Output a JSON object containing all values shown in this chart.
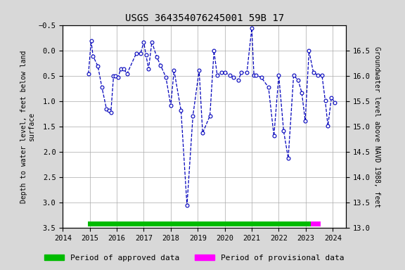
{
  "title": "USGS 364354076245001 59B 17",
  "ylabel_left": "Depth to water level, feet below land\nsurface",
  "ylabel_right": "Groundwater level above NAVD 1988, feet",
  "ylim_left_bottom": 3.5,
  "ylim_left_top": -0.5,
  "ylim_right_bottom": 13.0,
  "ylim_right_top": 16.5,
  "xlim": [
    2014.0,
    2024.5
  ],
  "xticks": [
    2014,
    2015,
    2016,
    2017,
    2018,
    2019,
    2020,
    2021,
    2022,
    2023,
    2024
  ],
  "yticks_left": [
    -0.5,
    0.0,
    0.5,
    1.0,
    1.5,
    2.0,
    2.5,
    3.0,
    3.5
  ],
  "yticks_right": [
    13.0,
    13.5,
    14.0,
    14.5,
    15.0,
    15.5,
    16.0,
    16.5
  ],
  "line_color": "#0000BB",
  "marker_facecolor": "white",
  "marker_edgecolor": "#0000BB",
  "background_color": "#d8d8d8",
  "plot_bg_color": "#ffffff",
  "grid_color": "#aaaaaa",
  "approved_bar_color": "#00BB00",
  "provisional_bar_color": "#FF00FF",
  "approved_start": 2014.92,
  "approved_end": 2023.18,
  "provisional_start": 2023.18,
  "provisional_end": 2023.55,
  "dates": [
    2014.95,
    2015.05,
    2015.12,
    2015.3,
    2015.45,
    2015.62,
    2015.7,
    2015.78,
    2015.88,
    2015.95,
    2016.05,
    2016.15,
    2016.25,
    2016.38,
    2016.72,
    2016.88,
    2017.0,
    2017.08,
    2017.18,
    2017.3,
    2017.48,
    2017.62,
    2017.82,
    2018.0,
    2018.12,
    2018.38,
    2018.6,
    2018.82,
    2019.05,
    2019.18,
    2019.45,
    2019.6,
    2019.72,
    2019.88,
    2020.0,
    2020.18,
    2020.32,
    2020.5,
    2020.62,
    2020.82,
    2021.0,
    2021.08,
    2021.15,
    2021.35,
    2021.62,
    2021.82,
    2022.0,
    2022.18,
    2022.35,
    2022.55,
    2022.72,
    2022.85,
    2022.98,
    2023.12,
    2023.28,
    2023.45,
    2023.6,
    2023.72,
    2023.82,
    2023.95,
    2024.08
  ],
  "depths": [
    0.45,
    -0.2,
    0.1,
    0.3,
    0.72,
    1.15,
    1.18,
    1.22,
    0.5,
    0.5,
    0.52,
    0.35,
    0.35,
    0.45,
    0.05,
    0.05,
    -0.18,
    0.08,
    0.35,
    -0.18,
    0.12,
    0.28,
    0.52,
    1.08,
    0.38,
    1.18,
    3.05,
    1.28,
    0.38,
    1.62,
    1.28,
    0.0,
    0.48,
    0.42,
    0.42,
    0.48,
    0.52,
    0.58,
    0.42,
    0.42,
    -0.45,
    0.48,
    0.48,
    0.52,
    0.72,
    1.68,
    0.48,
    1.58,
    2.12,
    0.48,
    0.58,
    0.82,
    1.38,
    0.0,
    0.42,
    0.48,
    0.48,
    0.98,
    1.48,
    0.92,
    1.02
  ],
  "title_fontsize": 10,
  "axis_fontsize": 7,
  "tick_fontsize": 7.5,
  "legend_fontsize": 8
}
